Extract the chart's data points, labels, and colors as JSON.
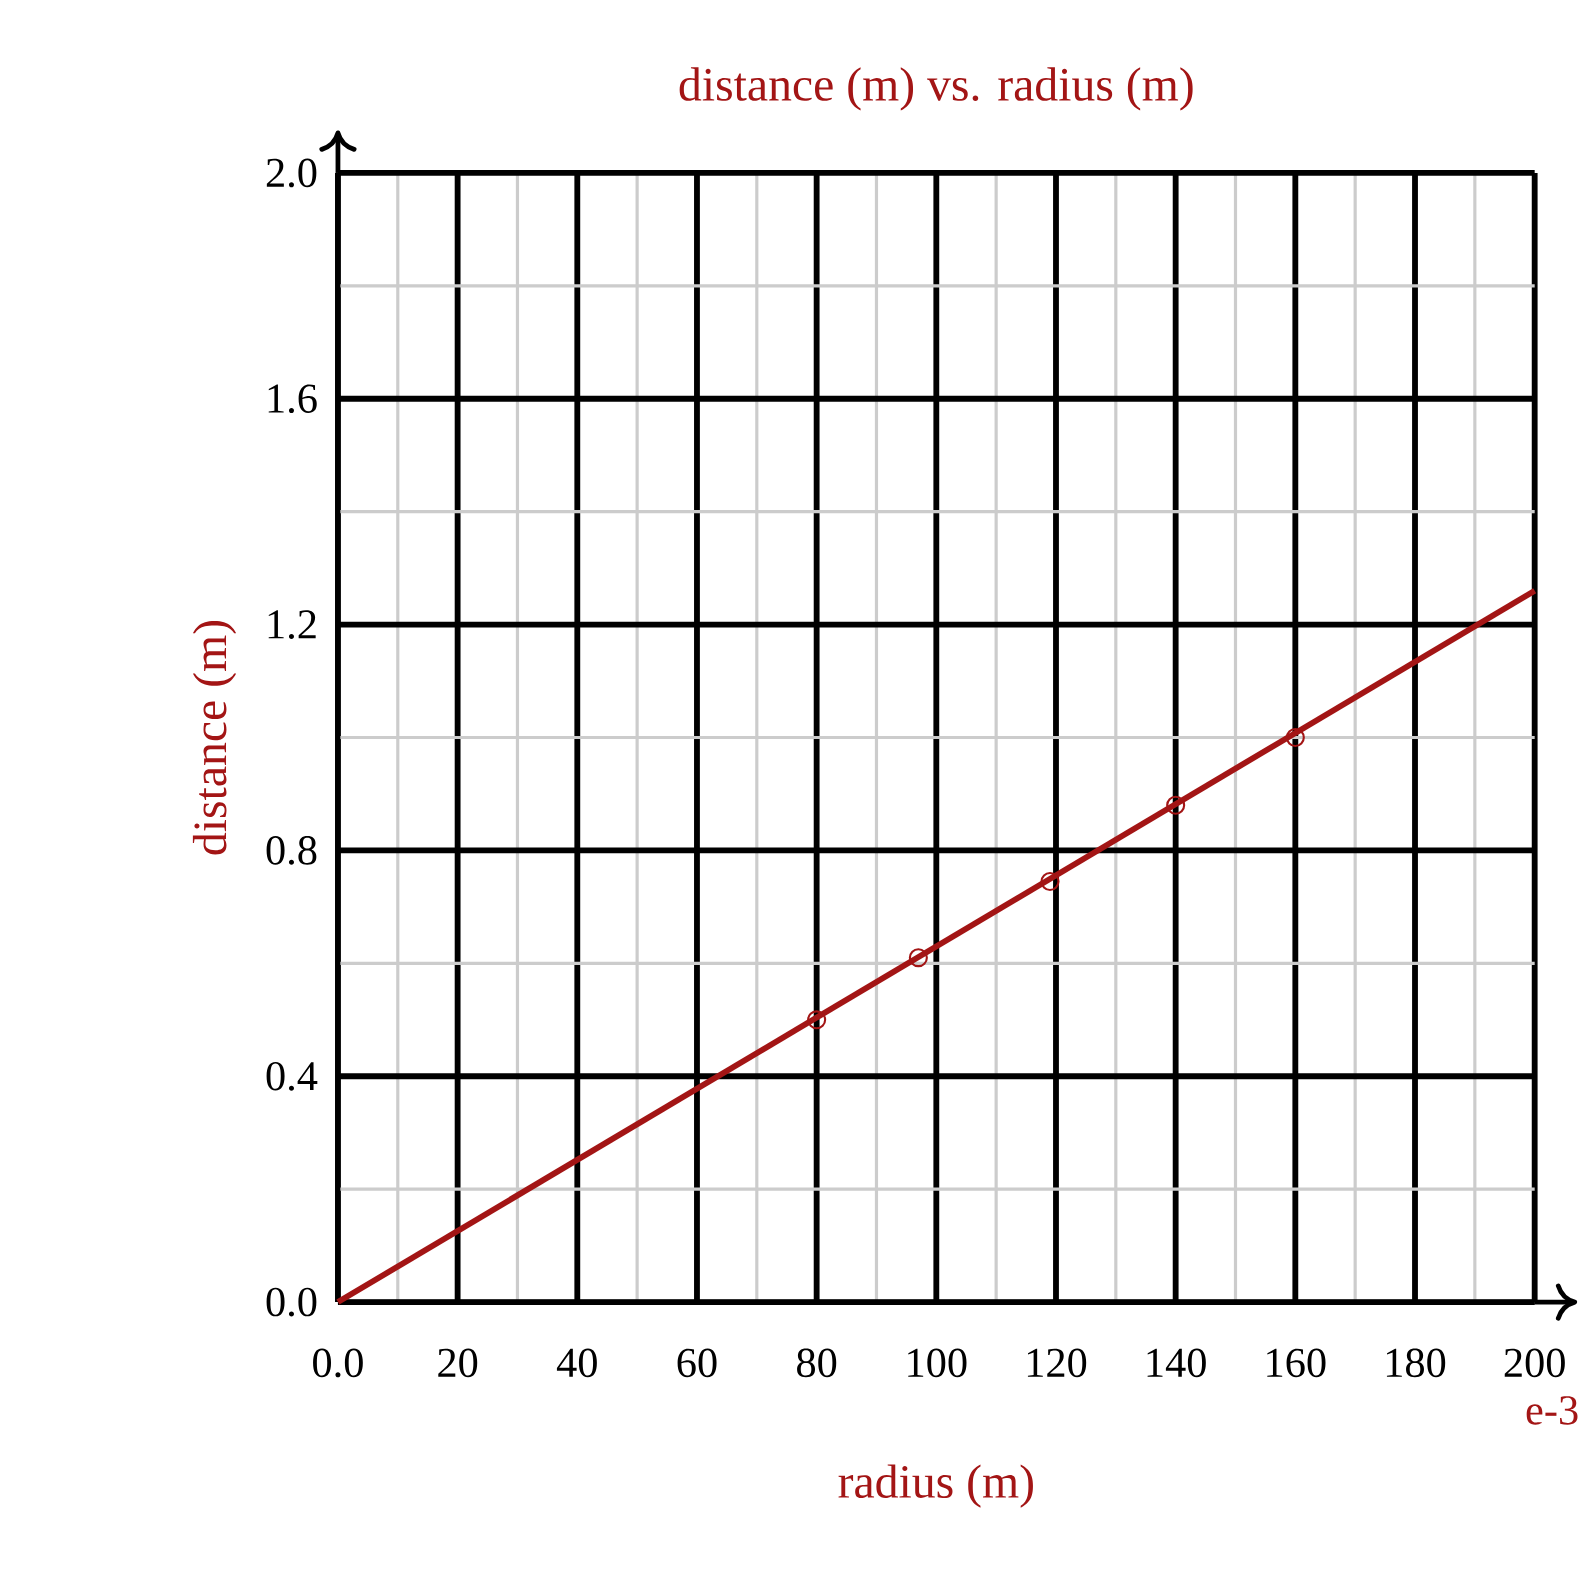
{
  "chart_data": {
    "type": "scatter",
    "title": "distance (m) vs. radius (m)",
    "xlabel": "radius (m)",
    "ylabel": "distance (m)",
    "annotations": [
      "e-3"
    ],
    "xlim": [
      0,
      200
    ],
    "ylim": [
      0,
      2.0
    ],
    "xticks": [
      {
        "value": 0,
        "label": "0.0"
      },
      20,
      40,
      60,
      80,
      100,
      120,
      140,
      160,
      180,
      200
    ],
    "yticks": [
      {
        "value": 0,
        "label": "0.0"
      },
      {
        "value": 0.4,
        "label": "0.4"
      },
      {
        "value": 0.8,
        "label": "0.8"
      },
      {
        "value": 1.2,
        "label": "1.2"
      },
      {
        "value": 1.6,
        "label": "1.6"
      },
      {
        "value": 2.0,
        "label": "2.0"
      }
    ],
    "grid": true,
    "series": [
      {
        "color": "#a31515",
        "marker": "circle",
        "x": [
          80,
          97,
          119,
          140,
          160
        ],
        "values": [
          0.5,
          0.61,
          0.745,
          0.88,
          1.0
        ]
      },
      {
        "type": "line",
        "color": "#a31515",
        "marker": "none",
        "line_style": "solid",
        "x": [
          0,
          200
        ],
        "values": [
          0,
          1.26
        ]
      }
    ]
  }
}
